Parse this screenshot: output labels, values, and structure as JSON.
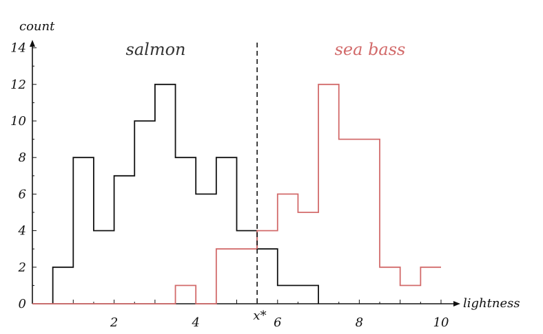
{
  "chart_data": {
    "type": "histogram",
    "xlabel": "lightness",
    "ylabel": "count",
    "xlim": [
      0,
      10
    ],
    "ylim": [
      0,
      14
    ],
    "x_ticks": [
      2,
      4,
      6,
      8,
      10
    ],
    "y_ticks": [
      0,
      2,
      4,
      6,
      8,
      10,
      12,
      14
    ],
    "bin_width": 0.5,
    "threshold": {
      "x": 5.5,
      "label": "x*",
      "style": "dashed"
    },
    "series": [
      {
        "name": "salmon",
        "color": "#111111",
        "x": [
          0.5,
          1.0,
          1.5,
          2.0,
          2.5,
          3.0,
          3.5,
          4.0,
          4.5,
          5.0,
          5.5,
          6.0,
          6.5
        ],
        "values": [
          2,
          8,
          4,
          7,
          10,
          12,
          8,
          6,
          8,
          4,
          3,
          1,
          1
        ]
      },
      {
        "name": "sea bass",
        "color": "#d26a6a",
        "x": [
          3.5,
          4.0,
          4.5,
          5.0,
          5.5,
          6.0,
          6.5,
          7.0,
          7.5,
          8.0,
          8.5,
          9.0,
          9.5
        ],
        "values": [
          1,
          0,
          3,
          3,
          4,
          6,
          5,
          12,
          9,
          9,
          2,
          1,
          2
        ]
      }
    ]
  }
}
